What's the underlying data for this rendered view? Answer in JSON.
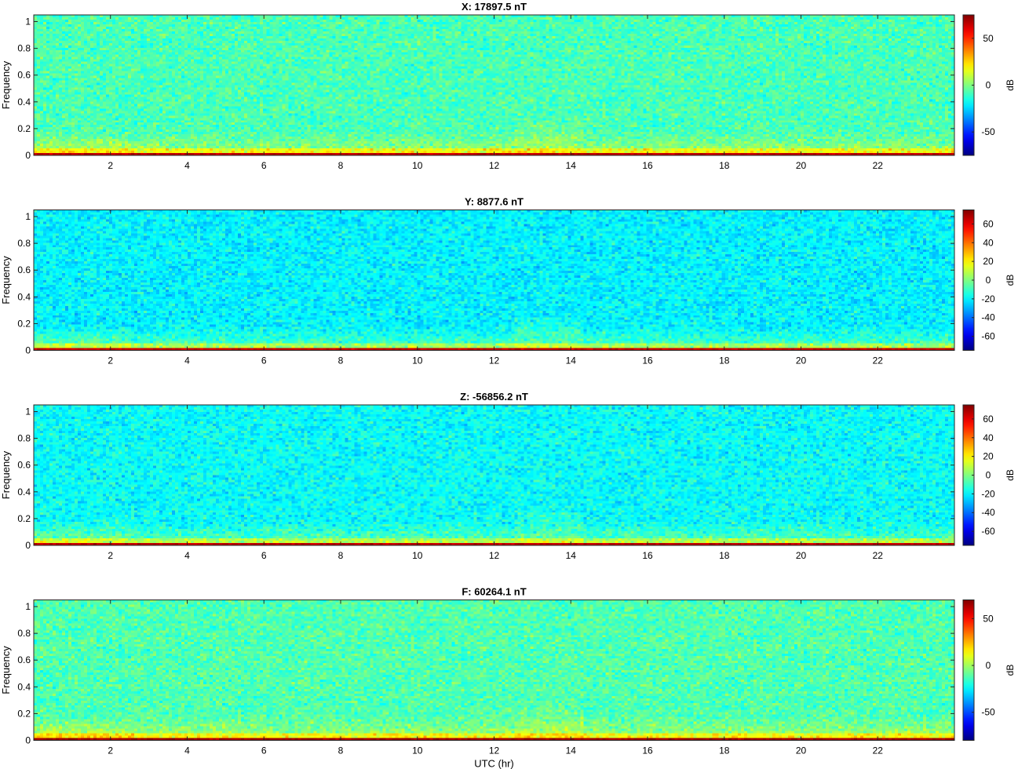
{
  "chart_data": [
    {
      "type": "heatmap",
      "title": "X: 17897.5 nT",
      "ylabel": "Frequency",
      "xlabel": "",
      "xlim": [
        0,
        24
      ],
      "ylim": [
        0,
        1.05
      ],
      "xticks": [
        2,
        4,
        6,
        8,
        10,
        12,
        14,
        16,
        18,
        20,
        22
      ],
      "yticks": [
        0,
        0.2,
        0.4,
        0.6,
        0.8,
        1
      ],
      "colorbar": {
        "label": "dB",
        "range": [
          -75,
          75
        ],
        "ticks": [
          -50,
          0,
          50
        ]
      },
      "colormap": "jet",
      "background_db": -8
    },
    {
      "type": "heatmap",
      "title": "Y: 8877.6 nT",
      "ylabel": "Frequency",
      "xlabel": "",
      "xlim": [
        0,
        24
      ],
      "ylim": [
        0,
        1.05
      ],
      "xticks": [
        2,
        4,
        6,
        8,
        10,
        12,
        14,
        16,
        18,
        20,
        22
      ],
      "yticks": [
        0,
        0.2,
        0.4,
        0.6,
        0.8,
        1
      ],
      "colorbar": {
        "label": "dB",
        "range": [
          -75,
          75
        ],
        "ticks": [
          -60,
          -40,
          -20,
          0,
          20,
          40,
          60
        ]
      },
      "colormap": "jet",
      "background_db": -20
    },
    {
      "type": "heatmap",
      "title": "Z: -56856.2 nT",
      "ylabel": "Frequency",
      "xlabel": "",
      "xlim": [
        0,
        24
      ],
      "ylim": [
        0,
        1.05
      ],
      "xticks": [
        2,
        4,
        6,
        8,
        10,
        12,
        14,
        16,
        18,
        20,
        22
      ],
      "yticks": [
        0,
        0.2,
        0.4,
        0.6,
        0.8,
        1
      ],
      "colorbar": {
        "label": "dB",
        "range": [
          -75,
          75
        ],
        "ticks": [
          -60,
          -40,
          -20,
          0,
          20,
          40,
          60
        ]
      },
      "colormap": "jet",
      "background_db": -18
    },
    {
      "type": "heatmap",
      "title": "F: 60264.1 nT",
      "ylabel": "Frequency",
      "xlabel": "UTC (hr)",
      "xlim": [
        0,
        24
      ],
      "ylim": [
        0,
        1.05
      ],
      "xticks": [
        2,
        4,
        6,
        8,
        10,
        12,
        14,
        16,
        18,
        20,
        22
      ],
      "yticks": [
        0,
        0.2,
        0.4,
        0.6,
        0.8,
        1
      ],
      "colorbar": {
        "label": "dB",
        "range": [
          -80,
          70
        ],
        "ticks": [
          -50,
          0,
          50
        ]
      },
      "colormap": "jet",
      "background_db": -12
    }
  ]
}
